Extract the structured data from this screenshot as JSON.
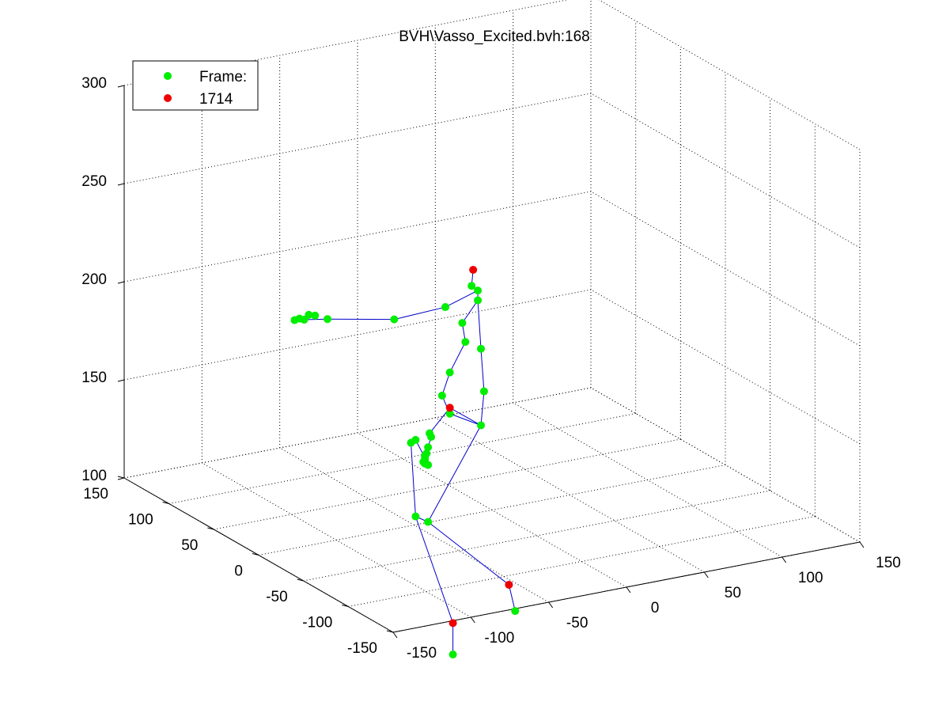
{
  "chart_data": {
    "type": "scatter",
    "title": "BVH\\Vasso_Excited.bvh:168",
    "xlabel": "",
    "ylabel": "",
    "zlabel": "",
    "x_ticks": [
      "-150",
      "-100",
      "-50",
      "0",
      "50",
      "100",
      "150"
    ],
    "y_ticks": [
      "-150",
      "-100",
      "-50",
      "0",
      "50",
      "100",
      "150"
    ],
    "z_ticks": [
      "100",
      "150",
      "200",
      "250",
      "300"
    ],
    "xlim": [
      -150,
      150
    ],
    "ylim": [
      -150,
      150
    ],
    "zlim": [
      100,
      300
    ],
    "grid": true,
    "legend": {
      "placement": "top-left",
      "entries": [
        {
          "label": "Frame:",
          "color": "#00ee00"
        },
        {
          "label": "1714",
          "color": "#ee0000"
        }
      ]
    },
    "colors": {
      "joint": "#00ee00",
      "end_effector": "#ee0000",
      "bone": "#0000cc"
    },
    "joints": [
      {
        "x": -10,
        "y": -5,
        "z": 146,
        "color": "green"
      },
      {
        "x": -30,
        "y": -5,
        "z": 155,
        "color": "green"
      },
      {
        "x": -35,
        "y": -5,
        "z": 165,
        "color": "green"
      },
      {
        "x": -30,
        "y": -5,
        "z": 176,
        "color": "green"
      },
      {
        "x": -20,
        "y": -5,
        "z": 190,
        "color": "green"
      },
      {
        "x": -22,
        "y": -5,
        "z": 200,
        "color": "green"
      },
      {
        "x": -12,
        "y": -5,
        "z": 210,
        "color": "green"
      },
      {
        "x": -12,
        "y": -5,
        "z": 215,
        "color": "green"
      },
      {
        "x": -16,
        "y": -5,
        "z": 218,
        "color": "green"
      },
      {
        "x": -15,
        "y": -5,
        "z": 226,
        "color": "red"
      },
      {
        "x": -30,
        "y": 0,
        "z": 208,
        "color": "green"
      },
      {
        "x": -60,
        "y": 5,
        "z": 205,
        "color": "green"
      },
      {
        "x": -100,
        "y": 10,
        "z": 210,
        "color": "green"
      },
      {
        "x": -115,
        "y": 10,
        "z": 212,
        "color": "green"
      },
      {
        "x": -118,
        "y": 10,
        "z": 213,
        "color": "green"
      },
      {
        "x": -120,
        "y": 12,
        "z": 212,
        "color": "green"
      },
      {
        "x": -112,
        "y": 10,
        "z": 214,
        "color": "green"
      },
      {
        "x": -108,
        "y": 10,
        "z": 213,
        "color": "green"
      },
      {
        "x": -10,
        "y": -5,
        "z": 185,
        "color": "green"
      },
      {
        "x": -8,
        "y": -5,
        "z": 163,
        "color": "green"
      },
      {
        "x": -30,
        "y": -5,
        "z": 158,
        "color": "red"
      },
      {
        "x": -43,
        "y": -5,
        "z": 147,
        "color": "green"
      },
      {
        "x": -42,
        "y": -5,
        "z": 145,
        "color": "green"
      },
      {
        "x": -44,
        "y": -5,
        "z": 140,
        "color": "green"
      },
      {
        "x": -45,
        "y": -5,
        "z": 137,
        "color": "green"
      },
      {
        "x": -46,
        "y": -5,
        "z": 136,
        "color": "green"
      },
      {
        "x": -46,
        "y": -5,
        "z": 134,
        "color": "green"
      },
      {
        "x": -47,
        "y": -5,
        "z": 133,
        "color": "green"
      },
      {
        "x": -46,
        "y": -5,
        "z": 132,
        "color": "green"
      },
      {
        "x": -44,
        "y": -5,
        "z": 131,
        "color": "green"
      },
      {
        "x": -46,
        "y": -5,
        "z": 135,
        "color": "green"
      },
      {
        "x": -52,
        "y": -5,
        "z": 145,
        "color": "green"
      },
      {
        "x": -55,
        "y": -5,
        "z": 144,
        "color": "green"
      },
      {
        "x": -52,
        "y": -5,
        "z": 106,
        "color": "green"
      },
      {
        "x": -44,
        "y": -5,
        "z": 102,
        "color": "green"
      },
      {
        "x": -28,
        "y": -5,
        "z": 48,
        "color": "red"
      },
      {
        "x": -28,
        "y": -5,
        "z": 32,
        "color": "green"
      },
      {
        "x": 8,
        "y": -5,
        "z": 62,
        "color": "red"
      },
      {
        "x": 12,
        "y": -5,
        "z": 48,
        "color": "green"
      }
    ]
  }
}
